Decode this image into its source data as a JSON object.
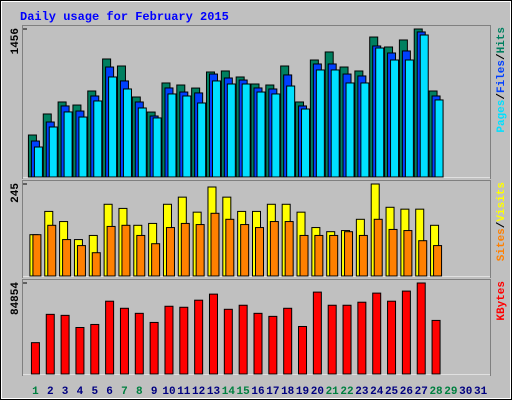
{
  "chart_data": [
    {
      "type": "bar",
      "title": "Daily usage for February 2015",
      "ylim": [
        0,
        1456
      ],
      "yticks": [
        1456
      ],
      "legend_separator": "/",
      "series": [
        {
          "name": "Hits",
          "color": "#008060",
          "values": [
            413,
            620,
            738,
            708,
            846,
            1161,
            1092,
            787,
            639,
            925,
            905,
            875,
            1033,
            1043,
            984,
            915,
            905,
            1092,
            738,
            1151,
            1230,
            1082,
            1043,
            1377,
            1279,
            1348,
            1456,
            846,
            null,
            null,
            null
          ]
        },
        {
          "name": "Files",
          "color": "#0040ff",
          "values": [
            354,
            541,
            699,
            649,
            797,
            1082,
            945,
            738,
            600,
            876,
            836,
            827,
            1013,
            974,
            954,
            876,
            866,
            1004,
            699,
            1112,
            1112,
            1013,
            994,
            1289,
            1220,
            1240,
            1427,
            797,
            null,
            null,
            null
          ]
        },
        {
          "name": "Pages",
          "color": "#00e0ff",
          "values": [
            295,
            492,
            640,
            590,
            748,
            984,
            866,
            679,
            581,
            817,
            797,
            728,
            945,
            915,
            915,
            836,
            817,
            895,
            669,
            1053,
            1053,
            925,
            925,
            1269,
            1151,
            1151,
            1397,
            758,
            null,
            null,
            null
          ]
        }
      ]
    },
    {
      "type": "bar",
      "ylim": [
        0,
        245
      ],
      "yticks": [
        245
      ],
      "legend_separator": "/",
      "series": [
        {
          "name": "Visits",
          "color": "#ffff00",
          "values": [
            110,
            172,
            145,
            97,
            108,
            191,
            180,
            135,
            140,
            191,
            210,
            170,
            237,
            210,
            172,
            172,
            191,
            191,
            170,
            129,
            118,
            121,
            151,
            245,
            183,
            178,
            178,
            135,
            null,
            null,
            null
          ]
        },
        {
          "name": "Sites",
          "color": "#ff8000",
          "values": [
            110,
            135,
            97,
            81,
            62,
            132,
            135,
            108,
            86,
            129,
            140,
            137,
            167,
            151,
            137,
            129,
            145,
            145,
            108,
            108,
            108,
            118,
            108,
            151,
            124,
            121,
            94,
            81,
            null,
            null,
            null
          ]
        }
      ]
    },
    {
      "type": "bar",
      "ylim": [
        0,
        84854
      ],
      "yticks": [
        84854
      ],
      "categories": [
        "1",
        "2",
        "3",
        "4",
        "5",
        "6",
        "7",
        "8",
        "9",
        "10",
        "11",
        "12",
        "13",
        "14",
        "15",
        "16",
        "17",
        "18",
        "19",
        "20",
        "21",
        "22",
        "23",
        "24",
        "25",
        "26",
        "27",
        "28",
        "29",
        "30",
        "31"
      ],
      "label_colors": [
        "#008040",
        "#000080",
        "#000080",
        "#000080",
        "#000080",
        "#000080",
        "#008040",
        "#008040",
        "#000080",
        "#000080",
        "#000080",
        "#000080",
        "#000080",
        "#008040",
        "#008040",
        "#000080",
        "#000080",
        "#000080",
        "#000080",
        "#000080",
        "#008040",
        "#008040",
        "#000080",
        "#000080",
        "#000080",
        "#000080",
        "#000080",
        "#008040",
        "#008040",
        "#000080",
        "#000080"
      ],
      "series": [
        {
          "name": "KBytes",
          "color": "#ff0000",
          "values": [
            29229,
            55625,
            54682,
            43369,
            46197,
            67880,
            61280,
            56567,
            48082,
            63166,
            62224,
            68823,
            74480,
            60338,
            64109,
            56567,
            53738,
            61280,
            44310,
            76365,
            64109,
            64109,
            66938,
            75423,
            67880,
            77309,
            84854,
            49967,
            null,
            null,
            null
          ]
        }
      ]
    }
  ]
}
